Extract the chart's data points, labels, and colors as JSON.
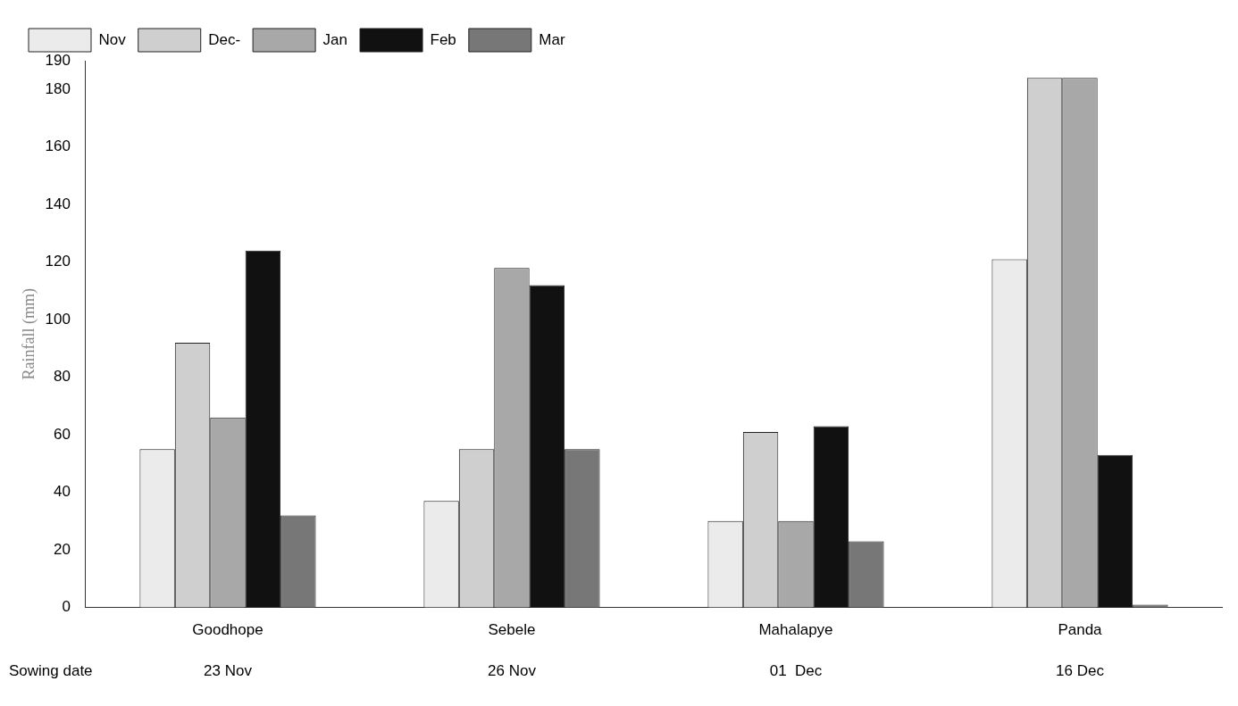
{
  "chart_data": {
    "type": "bar",
    "ylabel": "Rainfall (mm)",
    "categories": [
      "Goodhope",
      "Sebele",
      "Mahalapye",
      "Panda"
    ],
    "series": [
      {
        "name": "Nov",
        "color": "#ebebeb",
        "values": [
          55,
          37,
          30,
          121
        ]
      },
      {
        "name": "Dec-",
        "color": "#cfcfcf",
        "values": [
          92,
          55,
          61,
          184
        ]
      },
      {
        "name": "Jan",
        "color": "#a8a8a8",
        "values": [
          66,
          118,
          30,
          184
        ]
      },
      {
        "name": "Feb",
        "color": "#111111",
        "values": [
          124,
          112,
          63,
          53
        ]
      },
      {
        "name": "Mar",
        "color": "#777777",
        "values": [
          32,
          55,
          23,
          1
        ]
      }
    ],
    "ylim": [
      0,
      190
    ],
    "yticks": [
      0,
      20,
      40,
      60,
      80,
      100,
      120,
      140,
      160,
      180,
      190
    ],
    "grid": false,
    "legend": "top left",
    "annotations": [
      "Sowing date",
      "23 Nov",
      "26 Nov",
      "01  Dec",
      "16 Dec"
    ]
  }
}
